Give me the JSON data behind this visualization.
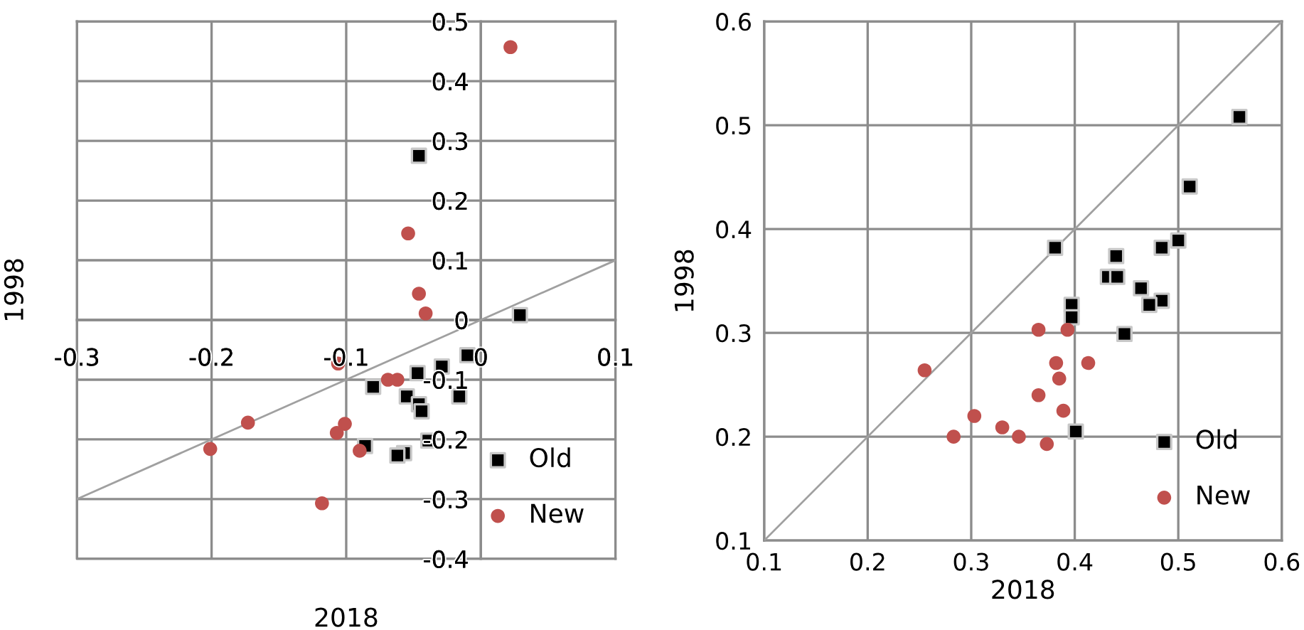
{
  "chart_data": [
    {
      "type": "scatter",
      "xlabel": "2018",
      "ylabel": "1998",
      "xlim": [
        -0.3,
        0.1
      ],
      "ylim": [
        -0.4,
        0.5
      ],
      "xticks": [
        -0.3,
        -0.2,
        -0.1,
        0,
        0.1
      ],
      "yticks": [
        -0.4,
        -0.3,
        -0.2,
        -0.1,
        0,
        0.1,
        0.2,
        0.3,
        0.4,
        0.5
      ],
      "grid": true,
      "legend": "bottom right",
      "series": [
        {
          "name": "Old",
          "type": "scatter",
          "marker": "square",
          "color": "#000000",
          "x": [
            -0.046,
            0.029,
            -0.01,
            -0.029,
            -0.047,
            -0.08,
            -0.055,
            -0.016,
            -0.046,
            -0.044,
            -0.039,
            -0.086,
            -0.057,
            -0.062
          ],
          "values": [
            0.275,
            0.008,
            -0.059,
            -0.078,
            -0.089,
            -0.112,
            -0.128,
            -0.128,
            -0.141,
            -0.153,
            -0.202,
            -0.211,
            -0.223,
            -0.227
          ]
        },
        {
          "name": "New",
          "type": "scatter",
          "marker": "circle",
          "color": "#c0504d",
          "x": [
            0.022,
            -0.054,
            -0.046,
            -0.041,
            -0.106,
            -0.069,
            -0.062,
            -0.173,
            -0.101,
            -0.107,
            -0.201,
            -0.09,
            -0.118
          ],
          "values": [
            0.457,
            0.145,
            0.044,
            0.011,
            -0.073,
            -0.1,
            -0.1,
            -0.172,
            -0.174,
            -0.189,
            -0.216,
            -0.219,
            -0.307
          ]
        },
        {
          "type": "line",
          "color": "#a0a0a0",
          "x": [
            -0.3,
            0.1
          ],
          "values": [
            -0.3,
            0.1
          ]
        }
      ]
    },
    {
      "type": "scatter",
      "xlabel": "2018",
      "ylabel": "1998",
      "xlim": [
        0.1,
        0.6
      ],
      "ylim": [
        0.1,
        0.6
      ],
      "xticks": [
        0.1,
        0.2,
        0.3,
        0.4,
        0.5,
        0.6
      ],
      "yticks": [
        0.1,
        0.2,
        0.3,
        0.4,
        0.5,
        0.6
      ],
      "grid": true,
      "legend": "bottom right",
      "series": [
        {
          "name": "Old",
          "type": "scatter",
          "marker": "square",
          "color": "#000000",
          "x": [
            0.559,
            0.511,
            0.5,
            0.484,
            0.381,
            0.44,
            0.432,
            0.441,
            0.464,
            0.484,
            0.472,
            0.397,
            0.397,
            0.448,
            0.401
          ],
          "values": [
            0.508,
            0.441,
            0.389,
            0.382,
            0.382,
            0.374,
            0.354,
            0.354,
            0.343,
            0.331,
            0.327,
            0.327,
            0.315,
            0.299,
            0.205
          ]
        },
        {
          "name": "New",
          "type": "scatter",
          "marker": "circle",
          "color": "#c0504d",
          "x": [
            0.255,
            0.365,
            0.393,
            0.382,
            0.413,
            0.385,
            0.365,
            0.389,
            0.303,
            0.33,
            0.283,
            0.346,
            0.373
          ],
          "values": [
            0.264,
            0.303,
            0.303,
            0.271,
            0.271,
            0.256,
            0.24,
            0.225,
            0.22,
            0.209,
            0.2,
            0.2,
            0.193
          ]
        },
        {
          "type": "line",
          "color": "#a0a0a0",
          "x": [
            0.1,
            0.6
          ],
          "values": [
            0.1,
            0.6
          ]
        }
      ]
    }
  ]
}
